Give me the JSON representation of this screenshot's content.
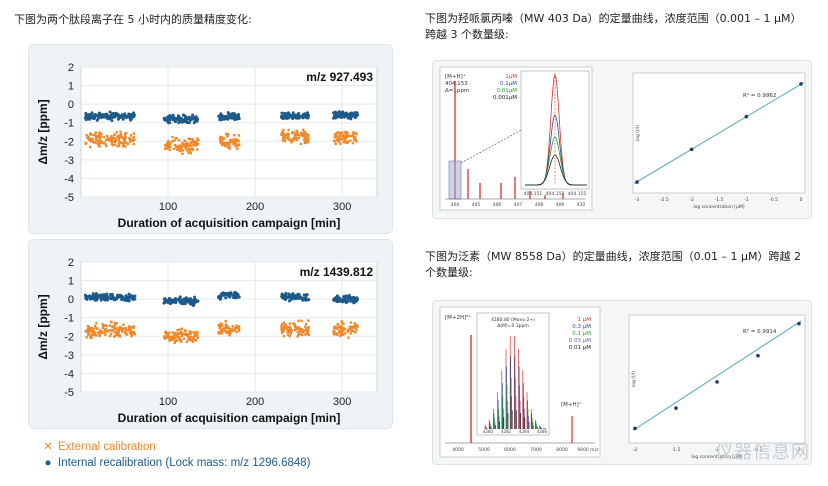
{
  "captions": {
    "left": "下图为两个肽段离子在 5 小时内的质量精度变化:",
    "right_top": "下图为羟哌氯丙嗪（MW 403 Da）的定量曲线，浓度范围（0.001 – 1 μM）跨越 3 个数量级:",
    "right_bottom": "下图为泛素（MW 8558 Da）的定量曲线，浓度范围（0.01 – 1 μM）跨越 2 个数量级:"
  },
  "legend": {
    "external": "External calibration",
    "internal": "Internal recalibration (Lock mass: m/z 1296.6848)",
    "external_symbol": "✕",
    "internal_symbol": "●"
  },
  "watermark": "仪器信息网",
  "chart_data": [
    {
      "type": "scatter",
      "title": "m/z 927.493",
      "xlabel": "Duration of acquisition campaign [min]",
      "ylabel": "Δm/z [ppm]",
      "xlim": [
        0,
        340
      ],
      "ylim": [
        -5,
        2
      ],
      "xticks": [
        100,
        200,
        300
      ],
      "yticks": [
        2,
        1,
        0,
        -1,
        -2,
        -3,
        -4,
        -5
      ],
      "colors": {
        "external": "#f0892b",
        "internal": "#1d5a8a"
      },
      "segments": [
        {
          "x_start": 5,
          "x_end": 62,
          "external_center": -1.9,
          "internal_center": -0.65
        },
        {
          "x_start": 95,
          "x_end": 135,
          "external_center": -2.2,
          "internal_center": -0.8
        },
        {
          "x_start": 158,
          "x_end": 182,
          "external_center": -2.0,
          "internal_center": -0.7
        },
        {
          "x_start": 230,
          "x_end": 262,
          "external_center": -1.8,
          "internal_center": -0.65
        },
        {
          "x_start": 290,
          "x_end": 318,
          "external_center": -1.8,
          "internal_center": -0.6
        }
      ]
    },
    {
      "type": "scatter",
      "title": "m/z 1439.812",
      "xlabel": "Duration of acquisition campaign [min]",
      "ylabel": "Δm/z [ppm]",
      "xlim": [
        0,
        340
      ],
      "ylim": [
        -5,
        2
      ],
      "xticks": [
        100,
        200,
        300
      ],
      "yticks": [
        2,
        1,
        0,
        -1,
        -2,
        -3,
        -4,
        -5
      ],
      "colors": {
        "external": "#f0892b",
        "internal": "#1d5a8a"
      },
      "segments": [
        {
          "x_start": 5,
          "x_end": 62,
          "external_center": -1.7,
          "internal_center": 0.1
        },
        {
          "x_start": 95,
          "x_end": 135,
          "external_center": -2.0,
          "internal_center": -0.1
        },
        {
          "x_start": 158,
          "x_end": 182,
          "external_center": -1.6,
          "internal_center": 0.2
        },
        {
          "x_start": 230,
          "x_end": 262,
          "external_center": -1.6,
          "internal_center": 0.1
        },
        {
          "x_start": 290,
          "x_end": 318,
          "external_center": -1.6,
          "internal_center": 0.0
        }
      ]
    }
  ],
  "figure_403": {
    "spectrum": {
      "labels": [
        "[M+H]⁺",
        "404.153",
        "Δ=1ppm"
      ],
      "x_ticks": [
        "404",
        "405",
        "406",
        "407",
        "408",
        "409",
        "410"
      ],
      "inset_legend": [
        "1μM",
        "0.1μM",
        "0.01μM",
        "0.001μM"
      ],
      "inset_colors": [
        "#e03030",
        "#1f4e8c",
        "#2ca02c",
        "#222222"
      ],
      "inset_x_ticks": [
        "404.151",
        "404.153",
        "404.155"
      ]
    },
    "calibration": {
      "r2": "R² = 0.9962",
      "x_ticks": [
        "-3",
        "-2.5",
        "-2",
        "-1.5",
        "-1",
        "-0.5",
        "0"
      ],
      "xlabel": "log concentration [μM]",
      "ylabel": "log (I/I)",
      "points_x": [
        -3,
        -2,
        -1,
        0
      ],
      "points_y": [
        0.8,
        2.0,
        3.2,
        4.4
      ]
    }
  },
  "figure_8558": {
    "spectrum": {
      "labels": [
        "[M+2H]²⁺",
        "[M+H]⁺"
      ],
      "inset_title": "4280.80 (Mono 2+)",
      "inset_sub": "Δ(M)=0.3ppm",
      "inset_legend": [
        "1 μM",
        "0.3 μM",
        "0.1 μM",
        "0.03 μM",
        "0.01 μM"
      ],
      "inset_colors": [
        "#e03030",
        "#1f4e8c",
        "#2ca02c",
        "#6b5aa6",
        "#222222"
      ],
      "x_ticks": [
        "4000",
        "5000",
        "6000",
        "7000",
        "8000",
        "9000 m/z"
      ],
      "inset_x_ticks": [
        "4280",
        "4282",
        "4284",
        "4286"
      ]
    },
    "calibration": {
      "r2": "R² = 0.9914",
      "xlabel": "log concentration [μM]",
      "ylabel": "log (I/I)",
      "x_ticks": [
        "-2",
        "-1.5",
        "-1",
        "-0.5",
        "0"
      ],
      "points_x": [
        -2,
        -1.5,
        -1,
        -0.5,
        0
      ],
      "points_y": [
        0.75,
        1.1,
        1.55,
        2.0,
        2.55
      ]
    }
  }
}
